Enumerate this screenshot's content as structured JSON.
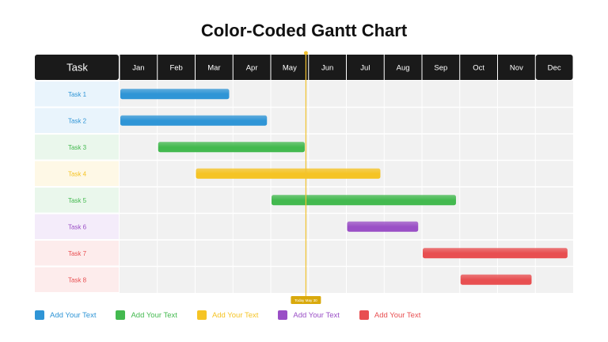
{
  "title": "Color-Coded Gantt Chart",
  "colors": {
    "header_bg": "#1a1a1a",
    "grid_bg": "#f1f1f1",
    "blue": "#2f95d6",
    "green": "#43b94f",
    "yellow": "#f5c425",
    "purple": "#9a4fc6",
    "red": "#e84f51",
    "today_line": "#f2c230",
    "today_badge": "#d9a90c"
  },
  "chart_data": {
    "type": "gantt",
    "task_header": "Task",
    "months": [
      "Jan",
      "Feb",
      "Mar",
      "Apr",
      "May",
      "Jun",
      "Jul",
      "Aug",
      "Sep",
      "Oct",
      "Nov",
      "Dec"
    ],
    "tasks": [
      {
        "name": "Task 1",
        "start": 0.0,
        "end": 2.9,
        "color": "blue"
      },
      {
        "name": "Task 2",
        "start": 0.0,
        "end": 3.9,
        "color": "blue"
      },
      {
        "name": "Task 3",
        "start": 1.0,
        "end": 4.9,
        "color": "green"
      },
      {
        "name": "Task 4",
        "start": 2.0,
        "end": 6.9,
        "color": "yellow"
      },
      {
        "name": "Task 5",
        "start": 4.0,
        "end": 8.9,
        "color": "green"
      },
      {
        "name": "Task 6",
        "start": 6.0,
        "end": 7.9,
        "color": "purple"
      },
      {
        "name": "Task 7",
        "start": 8.0,
        "end": 11.85,
        "color": "red"
      },
      {
        "name": "Task 8",
        "start": 9.0,
        "end": 10.9,
        "color": "red"
      }
    ],
    "today": {
      "label": "Today May 30",
      "month": 4.93
    }
  },
  "legend": [
    {
      "label": "Add Your Text",
      "color": "blue"
    },
    {
      "label": "Add Your Text",
      "color": "green"
    },
    {
      "label": "Add Your Text",
      "color": "yellow"
    },
    {
      "label": "Add Your Text",
      "color": "purple"
    },
    {
      "label": "Add Your Text",
      "color": "red"
    }
  ]
}
